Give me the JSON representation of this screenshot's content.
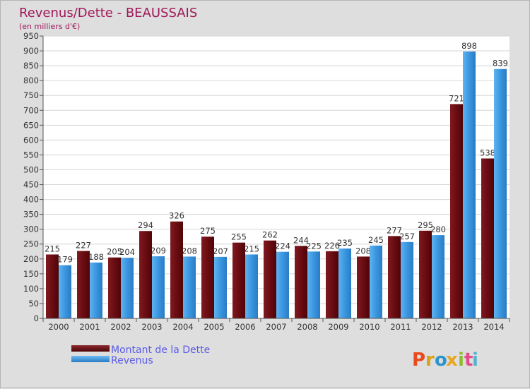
{
  "chart_data": {
    "type": "bar",
    "title": "Revenus/Dette - BEAUSSAIS",
    "subtitle": "(en milliers d'€)",
    "categories": [
      "2000",
      "2001",
      "2002",
      "2003",
      "2004",
      "2005",
      "2006",
      "2007",
      "2008",
      "2009",
      "2010",
      "2011",
      "2012",
      "2013",
      "2014"
    ],
    "series": [
      {
        "name": "Montant de la Dette",
        "color": "#6e0f14",
        "values": [
          215,
          227,
          205,
          294,
          326,
          275,
          255,
          262,
          244,
          226,
          208,
          277,
          295,
          721,
          538
        ]
      },
      {
        "name": "Revenus",
        "color": "#3a96e0",
        "values": [
          179,
          188,
          204,
          209,
          208,
          207,
          215,
          224,
          225,
          235,
          245,
          257,
          280,
          898,
          839
        ]
      }
    ],
    "ylim": [
      0,
      950
    ],
    "yticks": [
      0,
      50,
      100,
      150,
      200,
      250,
      300,
      350,
      400,
      450,
      500,
      550,
      600,
      650,
      700,
      750,
      800,
      850,
      900,
      950
    ],
    "grid": true,
    "legend_position": "bottom-left"
  },
  "branding": {
    "logo_letters": [
      "P",
      "r",
      "o",
      "x",
      "i",
      "t",
      "i"
    ],
    "logo_colors": [
      "#e84a1c",
      "#d8a413",
      "#2e94cf",
      "#e8a623",
      "#8bbd2c",
      "#e34c8b",
      "#52b3d0"
    ]
  }
}
